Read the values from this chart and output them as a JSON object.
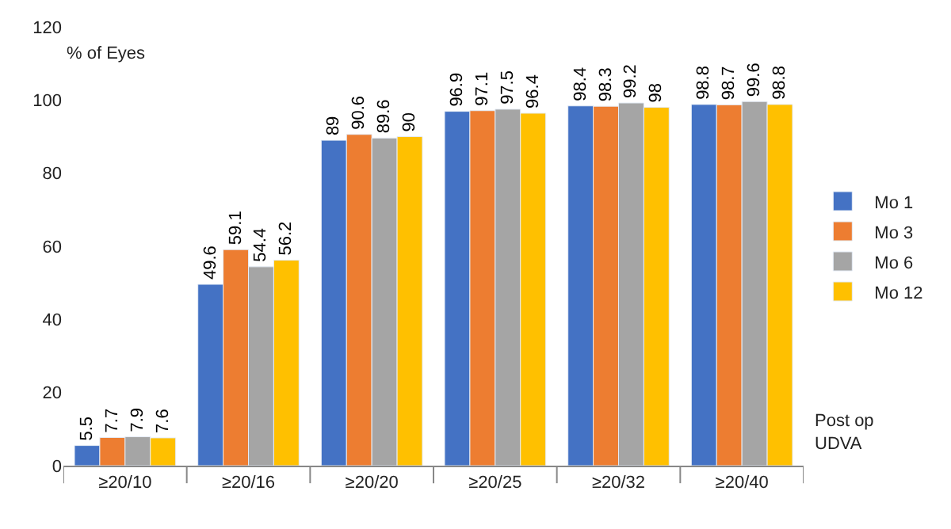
{
  "chart_data": {
    "type": "bar",
    "ylabel": "% of Eyes",
    "xlabel": "Post op UDVA",
    "categories": [
      "≥20/10",
      "≥20/16",
      "≥20/20",
      "≥20/25",
      "≥20/32",
      "≥20/40"
    ],
    "series": [
      {
        "name": "Mo 1",
        "color": "#4472c4",
        "values": [
          5.5,
          49.6,
          89,
          96.9,
          98.4,
          98.8
        ]
      },
      {
        "name": "Mo 3",
        "color": "#ed7d31",
        "values": [
          7.7,
          59.1,
          90.6,
          97.1,
          98.3,
          98.7
        ]
      },
      {
        "name": "Mo 6",
        "color": "#a5a5a5",
        "values": [
          7.9,
          54.4,
          89.6,
          97.5,
          99.2,
          99.6
        ]
      },
      {
        "name": "Mo 12",
        "color": "#ffc000",
        "values": [
          7.6,
          56.2,
          90,
          96.4,
          98,
          98.8
        ]
      }
    ],
    "ylim": [
      0,
      120
    ],
    "yticks": [
      0,
      20,
      40,
      60,
      80,
      100,
      120
    ],
    "data_labels": true,
    "legend": "right"
  }
}
